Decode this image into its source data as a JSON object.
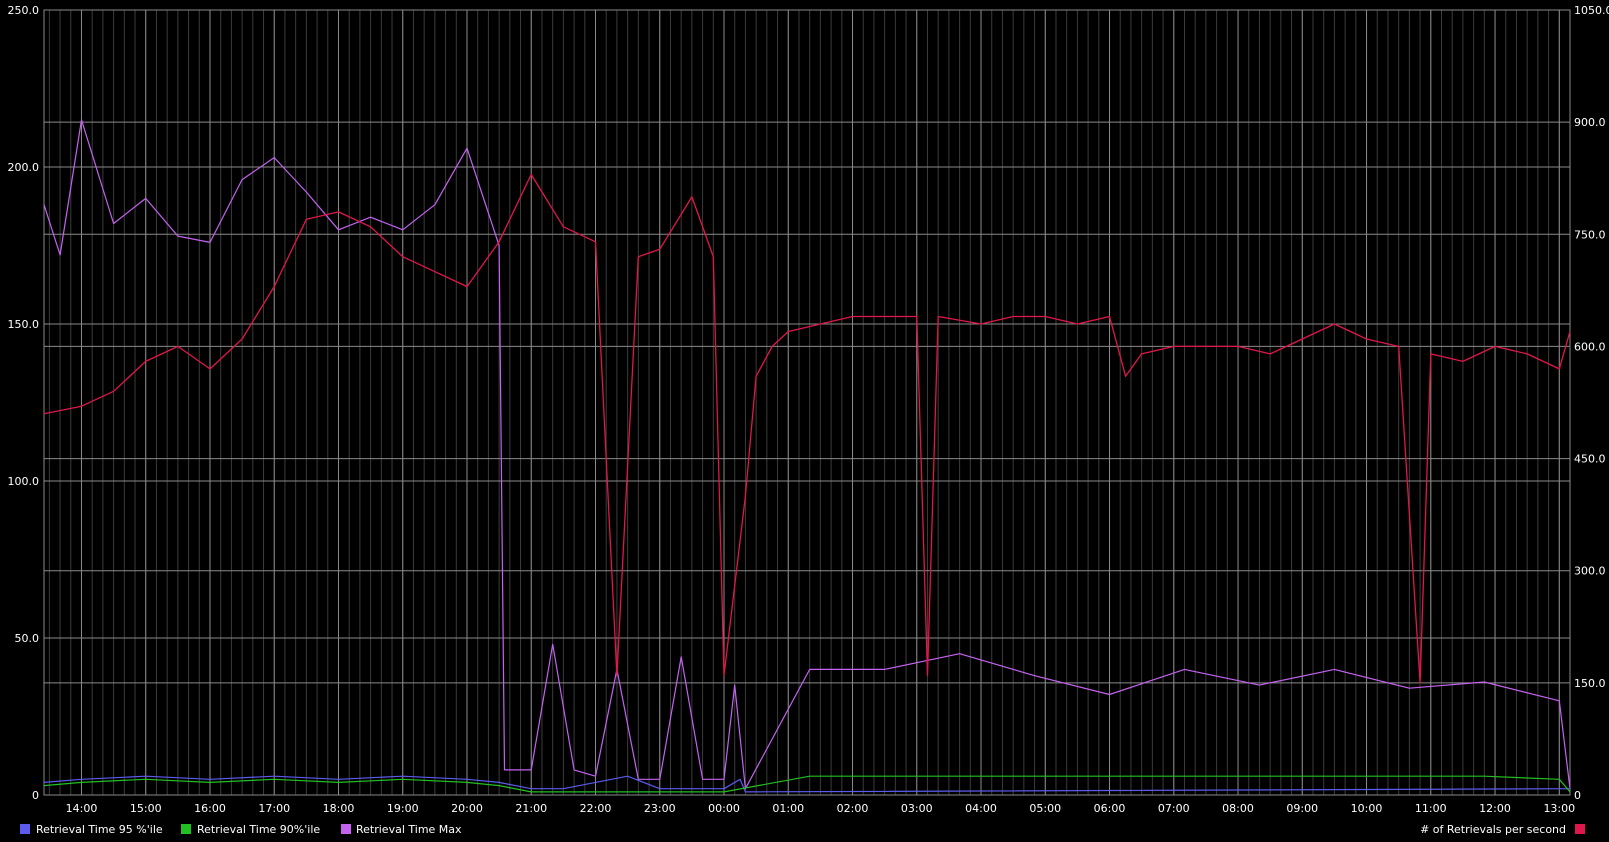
{
  "chart_data": {
    "type": "line",
    "title": "",
    "background": "#000000",
    "grid": true,
    "grid_color": "#8a8a8a",
    "minor_grid_color": "#3c3c3c",
    "x_start": "13:25",
    "x_end": "13:10",
    "x_ticks": [
      "14:00",
      "15:00",
      "16:00",
      "17:00",
      "18:00",
      "19:00",
      "20:00",
      "21:00",
      "22:00",
      "23:00",
      "00:00",
      "01:00",
      "02:00",
      "03:00",
      "04:00",
      "05:00",
      "06:00",
      "07:00",
      "08:00",
      "09:00",
      "10:00",
      "11:00",
      "12:00",
      "13:00"
    ],
    "y_left": {
      "ylim": [
        0,
        250
      ],
      "ticks": [
        "0",
        "50.0",
        "100.0",
        "150.0",
        "200.0",
        "250.0"
      ]
    },
    "y_right": {
      "ylim": [
        0,
        1050
      ],
      "ticks": [
        "0",
        "150.0",
        "300.0",
        "450.0",
        "600.0",
        "750.0",
        "900.0",
        "1050.0"
      ]
    },
    "legend_placement": "bottom",
    "series": [
      {
        "name": "Retrieval Time 95 %'ile",
        "axis": "left",
        "color": "#5b5bee",
        "points": [
          [
            "13:25",
            4
          ],
          [
            "14:00",
            5
          ],
          [
            "15:00",
            6
          ],
          [
            "16:00",
            5
          ],
          [
            "17:00",
            6
          ],
          [
            "18:00",
            5
          ],
          [
            "19:00",
            6
          ],
          [
            "20:00",
            5
          ],
          [
            "20:30",
            4
          ],
          [
            "21:00",
            2
          ],
          [
            "21:30",
            2
          ],
          [
            "22:30",
            6
          ],
          [
            "23:00",
            2
          ],
          [
            "00:00",
            2
          ],
          [
            "00:15",
            5
          ],
          [
            "00:20",
            1
          ],
          [
            "13:10",
            2
          ]
        ]
      },
      {
        "name": "Retrieval Time 90%'ile",
        "axis": "left",
        "color": "#22c022",
        "points": [
          [
            "13:25",
            3
          ],
          [
            "14:00",
            4
          ],
          [
            "15:00",
            5
          ],
          [
            "16:00",
            4
          ],
          [
            "17:00",
            5
          ],
          [
            "18:00",
            4
          ],
          [
            "19:00",
            5
          ],
          [
            "20:00",
            4
          ],
          [
            "20:30",
            3
          ],
          [
            "21:00",
            1
          ],
          [
            "22:00",
            1
          ],
          [
            "23:00",
            1
          ],
          [
            "00:00",
            1
          ],
          [
            "01:20",
            6
          ],
          [
            "02:30",
            6
          ],
          [
            "03:40",
            6
          ],
          [
            "04:50",
            6
          ],
          [
            "06:00",
            6
          ],
          [
            "07:10",
            6
          ],
          [
            "08:20",
            6
          ],
          [
            "09:30",
            6
          ],
          [
            "10:40",
            6
          ],
          [
            "11:50",
            6
          ],
          [
            "13:00",
            5
          ],
          [
            "13:10",
            1
          ]
        ]
      },
      {
        "name": "Retrieval Time Max",
        "axis": "left",
        "color": "#c463f0",
        "points": [
          [
            "13:25",
            188
          ],
          [
            "13:40",
            172
          ],
          [
            "14:00",
            215
          ],
          [
            "14:30",
            182
          ],
          [
            "15:00",
            190
          ],
          [
            "15:30",
            178
          ],
          [
            "16:00",
            176
          ],
          [
            "16:30",
            196
          ],
          [
            "17:00",
            203
          ],
          [
            "17:30",
            192
          ],
          [
            "18:00",
            180
          ],
          [
            "18:30",
            184
          ],
          [
            "19:00",
            180
          ],
          [
            "19:30",
            188
          ],
          [
            "20:00",
            206
          ],
          [
            "20:30",
            175
          ],
          [
            "20:35",
            8
          ],
          [
            "21:00",
            8
          ],
          [
            "21:20",
            48
          ],
          [
            "21:40",
            8
          ],
          [
            "22:00",
            6
          ],
          [
            "22:20",
            40
          ],
          [
            "22:40",
            5
          ],
          [
            "23:00",
            5
          ],
          [
            "23:20",
            44
          ],
          [
            "23:40",
            5
          ],
          [
            "00:00",
            5
          ],
          [
            "00:10",
            35
          ],
          [
            "00:20",
            2
          ],
          [
            "01:20",
            40
          ],
          [
            "02:30",
            40
          ],
          [
            "03:40",
            45
          ],
          [
            "04:50",
            38
          ],
          [
            "06:00",
            32
          ],
          [
            "07:10",
            40
          ],
          [
            "08:20",
            35
          ],
          [
            "09:30",
            40
          ],
          [
            "10:40",
            34
          ],
          [
            "11:50",
            36
          ],
          [
            "13:00",
            30
          ],
          [
            "13:10",
            2
          ]
        ]
      },
      {
        "name": "# of Retrievals per second",
        "axis": "right",
        "color": "#e0174a",
        "points": [
          [
            "13:25",
            510
          ],
          [
            "14:00",
            520
          ],
          [
            "14:30",
            540
          ],
          [
            "15:00",
            580
          ],
          [
            "15:30",
            600
          ],
          [
            "16:00",
            570
          ],
          [
            "16:30",
            610
          ],
          [
            "17:00",
            680
          ],
          [
            "17:30",
            770
          ],
          [
            "18:00",
            780
          ],
          [
            "18:30",
            760
          ],
          [
            "19:00",
            720
          ],
          [
            "19:30",
            700
          ],
          [
            "20:00",
            680
          ],
          [
            "20:30",
            740
          ],
          [
            "21:00",
            830
          ],
          [
            "21:30",
            760
          ],
          [
            "22:00",
            740
          ],
          [
            "22:20",
            160
          ],
          [
            "22:40",
            720
          ],
          [
            "23:00",
            730
          ],
          [
            "23:30",
            800
          ],
          [
            "23:50",
            720
          ],
          [
            "00:00",
            160
          ],
          [
            "00:20",
            400
          ],
          [
            "00:30",
            560
          ],
          [
            "00:45",
            600
          ],
          [
            "01:00",
            620
          ],
          [
            "01:30",
            630
          ],
          [
            "02:00",
            640
          ],
          [
            "02:30",
            640
          ],
          [
            "03:00",
            640
          ],
          [
            "03:10",
            160
          ],
          [
            "03:20",
            640
          ],
          [
            "04:00",
            630
          ],
          [
            "04:30",
            640
          ],
          [
            "05:00",
            640
          ],
          [
            "05:30",
            630
          ],
          [
            "06:00",
            640
          ],
          [
            "06:15",
            560
          ],
          [
            "06:30",
            590
          ],
          [
            "07:00",
            600
          ],
          [
            "07:30",
            600
          ],
          [
            "08:00",
            600
          ],
          [
            "08:30",
            590
          ],
          [
            "09:00",
            610
          ],
          [
            "09:30",
            630
          ],
          [
            "10:00",
            610
          ],
          [
            "10:30",
            600
          ],
          [
            "10:50",
            150
          ],
          [
            "11:00",
            590
          ],
          [
            "11:30",
            580
          ],
          [
            "12:00",
            600
          ],
          [
            "12:30",
            590
          ],
          [
            "13:00",
            570
          ],
          [
            "13:10",
            620
          ]
        ]
      }
    ]
  }
}
